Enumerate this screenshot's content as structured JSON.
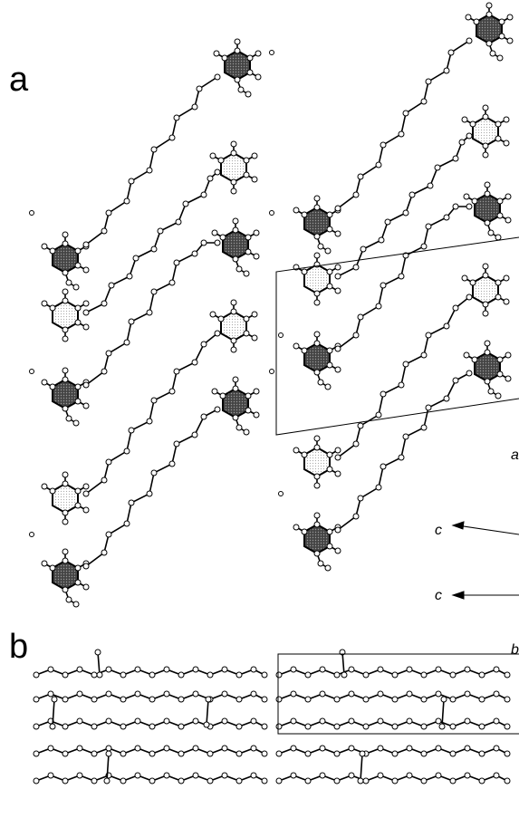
{
  "panel_a": {
    "label": "a",
    "axis_labels": [
      "c",
      "c",
      "a"
    ]
  },
  "panel_b": {
    "label": "b",
    "axis_labels": [
      "b"
    ]
  }
}
